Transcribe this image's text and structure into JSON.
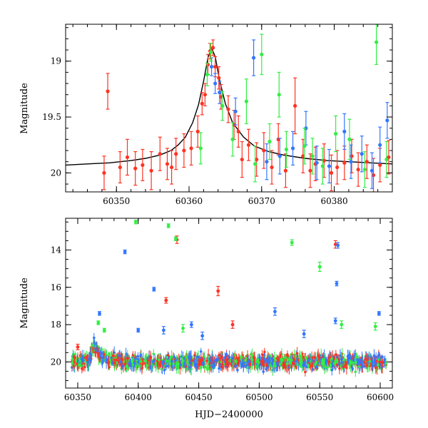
{
  "chart_data": [
    {
      "type": "scatter",
      "title": "",
      "xlabel": "",
      "ylabel": "Magnitude",
      "xlim": [
        60343,
        60388
      ],
      "ylim": [
        20.17,
        18.67
      ],
      "y_inverted": true,
      "xticks": [
        60350,
        60360,
        60370,
        60380
      ],
      "yticks": [
        19,
        19.5,
        20
      ],
      "xtick_labels": [
        "60350",
        "60360",
        "60370",
        "60380"
      ],
      "ytick_labels": [
        "19",
        "19.5",
        "20"
      ],
      "grid": false,
      "legend": "none",
      "fit_curve": {
        "color": "#000000",
        "points": [
          [
            60343,
            19.93
          ],
          [
            60346,
            19.92
          ],
          [
            60349,
            19.91
          ],
          [
            60352,
            19.89
          ],
          [
            60354,
            19.87
          ],
          [
            60356,
            19.84
          ],
          [
            60357.5,
            19.8
          ],
          [
            60358.5,
            19.75
          ],
          [
            60359.5,
            19.68
          ],
          [
            60360.5,
            19.55
          ],
          [
            60361.3,
            19.39
          ],
          [
            60362,
            19.18
          ],
          [
            60362.6,
            18.97
          ],
          [
            60363.1,
            18.88
          ],
          [
            60363.6,
            18.96
          ],
          [
            60364.2,
            19.17
          ],
          [
            60365,
            19.38
          ],
          [
            60366,
            19.55
          ],
          [
            60367.5,
            19.68
          ],
          [
            60369,
            19.76
          ],
          [
            60371,
            19.81
          ],
          [
            60373,
            19.84
          ],
          [
            60376,
            19.87
          ],
          [
            60379,
            19.89
          ],
          [
            60382,
            19.9
          ],
          [
            60385,
            19.91
          ],
          [
            60388,
            19.92
          ]
        ]
      },
      "series": [
        {
          "color": "#ff3322",
          "points": [
            [
              60348.8,
              19.27,
              0.16
            ],
            [
              60348.3,
              20.0,
              0.15
            ],
            [
              60350.5,
              19.95,
              0.14
            ],
            [
              60351.5,
              19.86,
              0.16
            ],
            [
              60352.6,
              19.96,
              0.15
            ],
            [
              60353.6,
              19.93,
              0.14
            ],
            [
              60354.8,
              19.98,
              0.17
            ],
            [
              60356,
              19.83,
              0.15
            ],
            [
              60357,
              19.92,
              0.14
            ],
            [
              60357.6,
              19.95,
              0.15
            ],
            [
              60358.2,
              19.83,
              0.14
            ],
            [
              60359.3,
              19.8,
              0.15
            ],
            [
              60360.3,
              19.78,
              0.15
            ],
            [
              60361.2,
              19.63,
              0.14
            ],
            [
              60361.8,
              19.38,
              0.1
            ],
            [
              60362.2,
              19.3,
              0.1
            ],
            [
              60362.6,
              19.03,
              0.09
            ],
            [
              60362.9,
              18.91,
              0.07
            ],
            [
              60363.3,
              18.88,
              0.07
            ],
            [
              60363.6,
              19.05,
              0.09
            ],
            [
              60364.1,
              19.15,
              0.1
            ],
            [
              60364.4,
              19.32,
              0.11
            ],
            [
              60365.4,
              19.43,
              0.12
            ],
            [
              60366.2,
              19.57,
              0.13
            ],
            [
              60366.8,
              19.63,
              0.14
            ],
            [
              60367.3,
              19.88,
              0.16
            ],
            [
              60368.2,
              19.75,
              0.14
            ],
            [
              60369.3,
              19.88,
              0.15
            ],
            [
              60370.3,
              19.8,
              0.16
            ],
            [
              60371.4,
              19.95,
              0.15
            ],
            [
              60372.3,
              19.7,
              0.14
            ],
            [
              60373.3,
              19.98,
              0.15
            ],
            [
              60374.6,
              19.4,
              0.25
            ],
            [
              60375.7,
              19.85,
              0.15
            ],
            [
              60376.7,
              19.98,
              0.15
            ],
            [
              60377.4,
              19.92,
              0.15
            ],
            [
              60378.6,
              19.89,
              0.15
            ],
            [
              60379.6,
              20.0,
              0.16
            ],
            [
              60380.4,
              19.95,
              0.15
            ],
            [
              60381.4,
              19.91,
              0.15
            ],
            [
              60382.4,
              19.85,
              0.15
            ],
            [
              60383.3,
              19.97,
              0.15
            ],
            [
              60384.5,
              19.9,
              0.15
            ],
            [
              60385.4,
              20.02,
              0.15
            ],
            [
              60386.3,
              19.93,
              0.15
            ],
            [
              60387.5,
              19.86,
              0.15
            ]
          ]
        },
        {
          "color": "#3377ff",
          "points": [
            [
              60363.1,
              19.05,
              0.08
            ],
            [
              60363.6,
              19.2,
              0.09
            ],
            [
              60364.2,
              19.28,
              0.1
            ],
            [
              60366.4,
              19.45,
              0.12
            ],
            [
              60368.9,
              18.97,
              0.16
            ],
            [
              60370.7,
              19.9,
              0.16
            ],
            [
              60372.5,
              19.85,
              0.16
            ],
            [
              60374.3,
              19.78,
              0.15
            ],
            [
              60376.1,
              19.6,
              0.15
            ],
            [
              60377.6,
              19.91,
              0.15
            ],
            [
              60379.3,
              19.94,
              0.15
            ],
            [
              60381.4,
              19.63,
              0.16
            ],
            [
              60382.3,
              19.9,
              0.15
            ],
            [
              60383.8,
              19.83,
              0.16
            ],
            [
              60385.2,
              19.98,
              0.16
            ],
            [
              60386.3,
              19.75,
              0.16
            ],
            [
              60387.3,
              19.53,
              0.16
            ]
          ]
        },
        {
          "color": "#33ee44",
          "points": [
            [
              60361.6,
              19.78,
              0.14
            ],
            [
              60362.5,
              19.12,
              0.1
            ],
            [
              60363.0,
              18.92,
              0.08
            ],
            [
              60364.6,
              19.4,
              0.13
            ],
            [
              60366.0,
              19.7,
              0.15
            ],
            [
              60367.9,
              19.36,
              0.2
            ],
            [
              60369.1,
              19.92,
              0.16
            ],
            [
              60370.0,
              18.94,
              0.18
            ],
            [
              60371.1,
              19.72,
              0.16
            ],
            [
              60372.4,
              19.3,
              0.2
            ],
            [
              60373.4,
              19.79,
              0.16
            ],
            [
              60375.9,
              19.76,
              0.16
            ],
            [
              60377.0,
              19.85,
              0.16
            ],
            [
              60378.4,
              19.94,
              0.16
            ],
            [
              60380.2,
              19.65,
              0.16
            ],
            [
              60382.1,
              19.7,
              0.18
            ],
            [
              60384.2,
              19.97,
              0.16
            ],
            [
              60385.8,
              18.83,
              0.2
            ],
            [
              60387.2,
              19.88,
              0.16
            ]
          ]
        }
      ]
    },
    {
      "type": "scatter",
      "title": "",
      "xlabel": "HJD−2400000",
      "ylabel": "Magnitude",
      "xlim": [
        60340,
        60610
      ],
      "ylim": [
        21.4,
        12.3
      ],
      "y_inverted": true,
      "xticks": [
        60350,
        60400,
        60450,
        60500,
        60550,
        60600
      ],
      "yticks": [
        14,
        16,
        18,
        20
      ],
      "xtick_labels": [
        "60350",
        "60400",
        "60450",
        "60500",
        "60550",
        "60600"
      ],
      "ytick_labels": [
        "14",
        "16",
        "18",
        "20"
      ],
      "grid": false,
      "legend": "none",
      "dense_band": {
        "x_range": [
          60345,
          60605
        ],
        "center": 20.0,
        "spread": 0.35,
        "flare": {
          "x": 60363,
          "peak": 19.0
        },
        "colors": [
          "#ff3322",
          "#3377ff",
          "#33ee44"
        ]
      },
      "series": [
        {
          "color": "#ff3322",
          "points": [
            [
              60350,
              19.2,
              0.15
            ],
            [
              60423,
              16.7,
              0.15
            ],
            [
              60432,
              13.45,
              0.2
            ],
            [
              60466,
              16.2,
              0.25
            ],
            [
              60478,
              18.0,
              0.2
            ],
            [
              60563,
              13.7,
              0.2
            ]
          ]
        },
        {
          "color": "#3377ff",
          "points": [
            [
              60368,
              17.4,
              0.1
            ],
            [
              60389,
              14.1,
              0.1
            ],
            [
              60400,
              18.3,
              0.1
            ],
            [
              60413,
              16.1,
              0.1
            ],
            [
              60421,
              18.3,
              0.2
            ],
            [
              60444,
              18.0,
              0.15
            ],
            [
              60453,
              18.6,
              0.2
            ],
            [
              60513,
              17.3,
              0.2
            ],
            [
              60537,
              18.5,
              0.2
            ],
            [
              60565,
              13.75,
              0.15
            ],
            [
              60564,
              15.8,
              0.12
            ],
            [
              60563,
              17.8,
              0.15
            ],
            [
              60599,
              17.4,
              0.1
            ]
          ]
        },
        {
          "color": "#33ee44",
          "points": [
            [
              60367,
              17.9,
              0.1
            ],
            [
              60372,
              18.3,
              0.1
            ],
            [
              60398,
              12.5,
              0.1
            ],
            [
              60425,
              12.7,
              0.1
            ],
            [
              60431,
              13.4,
              0.1
            ],
            [
              60437,
              18.2,
              0.2
            ],
            [
              60527,
              13.6,
              0.15
            ],
            [
              60550,
              14.9,
              0.25
            ],
            [
              60568,
              18.0,
              0.2
            ],
            [
              60596,
              18.1,
              0.2
            ]
          ]
        }
      ]
    }
  ]
}
